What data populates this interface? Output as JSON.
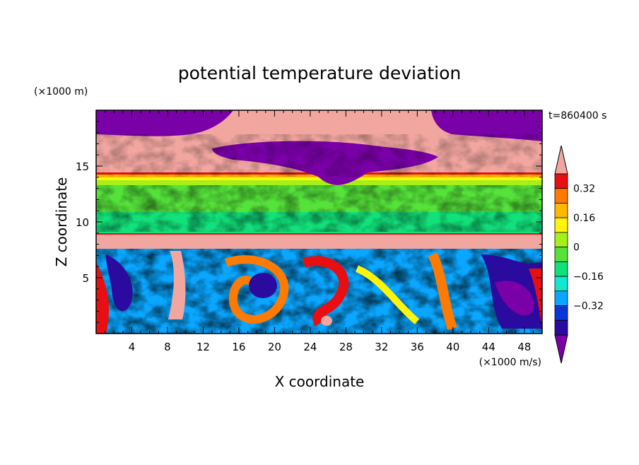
{
  "chart_data": {
    "type": "heatmap",
    "title": "potential temperature deviation",
    "xlabel": "X coordinate",
    "ylabel": "Z coordinate",
    "x_unit": "(×1000 m/s)",
    "y_unit": "(×1000 m)",
    "time_label": "t=860400 s",
    "xlim": [
      0,
      50
    ],
    "ylim": [
      0,
      20
    ],
    "x_ticks": [
      4,
      8,
      12,
      16,
      20,
      24,
      28,
      32,
      36,
      40,
      44,
      48
    ],
    "y_ticks": [
      5,
      10,
      15
    ],
    "colorbar": {
      "levels": [
        -0.48,
        -0.4,
        -0.32,
        -0.24,
        -0.16,
        -0.08,
        0,
        0.08,
        0.16,
        0.24,
        0.32,
        0.4
      ],
      "tick_labels": [
        "0.32",
        "0.16",
        "0",
        "−0.16",
        "−0.32"
      ],
      "tick_values": [
        0.32,
        0.16,
        0,
        -0.16,
        -0.32
      ],
      "colors": [
        "#7a00a8",
        "#2b0aa0",
        "#0838d8",
        "#0aa6ff",
        "#11e8d0",
        "#12e07a",
        "#55e23a",
        "#a6f01a",
        "#fff40a",
        "#ffb800",
        "#ff7a00",
        "#e80e12",
        "#f2a6a0"
      ],
      "extend": "both"
    }
  }
}
